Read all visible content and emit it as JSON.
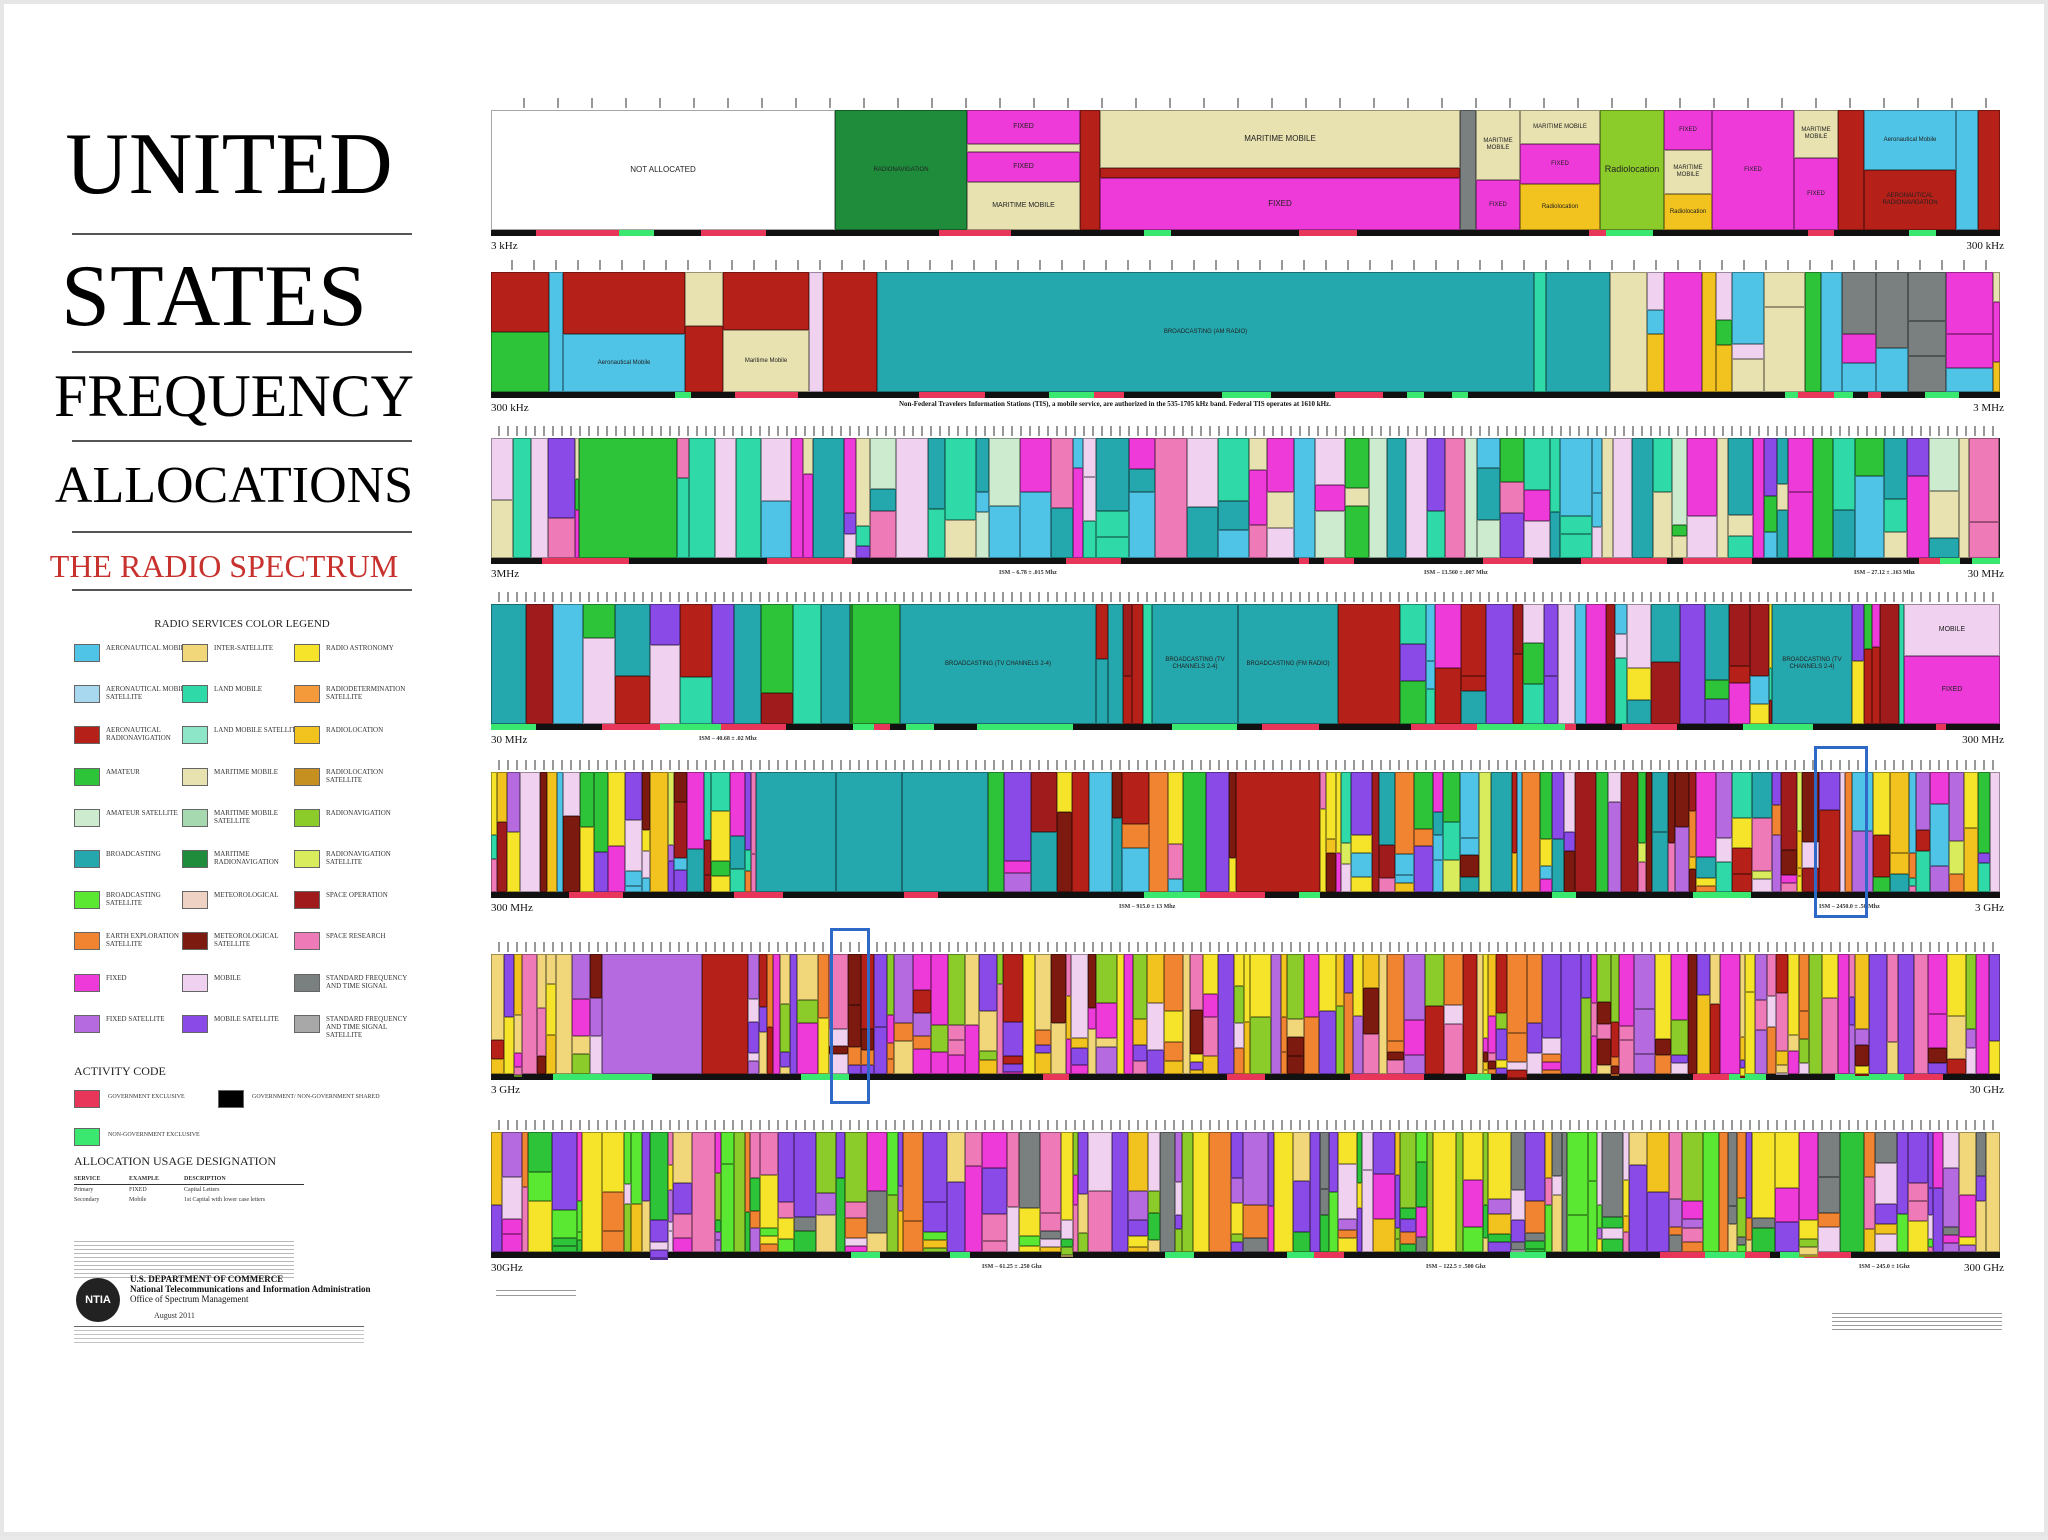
{
  "title": {
    "line1": "UNITED",
    "line2": "STATES",
    "line3": "FREQUENCY",
    "line4": "ALLOCATIONS",
    "subtitle": "THE RADIO SPECTRUM"
  },
  "legend": {
    "title": "RADIO SERVICES COLOR LEGEND",
    "items": [
      {
        "label": "AERONAUTICAL MOBILE",
        "color": "#4fc4e6"
      },
      {
        "label": "INTER-SATELLITE",
        "color": "#f1d77a"
      },
      {
        "label": "RADIO ASTRONOMY",
        "color": "#f5e42a"
      },
      {
        "label": "AERONAUTICAL MOBILE SATELLITE",
        "color": "#a8d8f0"
      },
      {
        "label": "LAND MOBILE",
        "color": "#2fd9a8"
      },
      {
        "label": "RADIODETERMINATION SATELLITE",
        "color": "#f59a3a"
      },
      {
        "label": "AERONAUTICAL RADIONAVIGATION",
        "color": "#b52018"
      },
      {
        "label": "LAND MOBILE SATELLITE",
        "color": "#8ee6c8"
      },
      {
        "label": "RADIOLOCATION",
        "color": "#f2c21f"
      },
      {
        "label": "AMATEUR",
        "color": "#2ec43a"
      },
      {
        "label": "MARITIME MOBILE",
        "color": "#e8e2b0"
      },
      {
        "label": "RADIOLOCATION SATELLITE",
        "color": "#c69020"
      },
      {
        "label": "AMATEUR SATELLITE",
        "color": "#cdeccf"
      },
      {
        "label": "MARITIME MOBILE SATELLITE",
        "color": "#a6d9b0"
      },
      {
        "label": "RADIONAVIGATION",
        "color": "#8ccc2a"
      },
      {
        "label": "BROADCASTING",
        "color": "#25a8ad"
      },
      {
        "label": "MARITIME RADIONAVIGATION",
        "color": "#1f8c3c"
      },
      {
        "label": "RADIONAVIGATION SATELLITE",
        "color": "#d8ec5c"
      },
      {
        "label": "BROADCASTING SATELLITE",
        "color": "#5ae832"
      },
      {
        "label": "METEOROLOGICAL",
        "color": "#f0d2c4"
      },
      {
        "label": "SPACE OPERATION",
        "color": "#a01c1c"
      },
      {
        "label": "EARTH EXPLORATION SATELLITE",
        "color": "#f08430"
      },
      {
        "label": "METEOROLOGICAL SATELLITE",
        "color": "#7c1a10"
      },
      {
        "label": "SPACE RESEARCH",
        "color": "#ee7ab8"
      },
      {
        "label": "FIXED",
        "color": "#ee3ad8"
      },
      {
        "label": "MOBILE",
        "color": "#f0d2f0"
      },
      {
        "label": "STANDARD FREQUENCY AND TIME SIGNAL",
        "color": "#7a8080"
      },
      {
        "label": "FIXED SATELLITE",
        "color": "#b66ae0"
      },
      {
        "label": "MOBILE SATELLITE",
        "color": "#8a4ae8"
      },
      {
        "label": "STANDARD FREQUENCY AND TIME SIGNAL SATELLITE",
        "color": "#a8a8a8"
      }
    ]
  },
  "activity": {
    "title": "ACTIVITY CODE",
    "items": [
      {
        "label": "GOVERNMENT EXCLUSIVE",
        "color": "#e8365a"
      },
      {
        "label": "GOVERNMENT/ NON-GOVERNMENT SHARED",
        "color": "#000000"
      },
      {
        "label": "NON-GOVERNMENT EXCLUSIVE",
        "color": "#3ae870"
      }
    ]
  },
  "usage": {
    "title": "ALLOCATION USAGE DESIGNATION",
    "headers": [
      "SERVICE",
      "EXAMPLE",
      "DESCRIPTION"
    ],
    "rows": [
      [
        "Primary",
        "FIXED",
        "Capital Letters"
      ],
      [
        "Secondary",
        "Mobile",
        "1st Capital with lower case letters"
      ]
    ]
  },
  "agency": {
    "logo": "NTIA",
    "line1": "U.S. DEPARTMENT OF COMMERCE",
    "line2": "National Telecommunications and Information Administration",
    "line3": "Office of Spectrum Management",
    "date": "August 2011"
  },
  "bands": [
    {
      "start": "3 kHz",
      "end": "300 kHz"
    },
    {
      "start": "300 kHz",
      "end": "3 MHz",
      "note": "Non-Federal Travelers Information Stations (TIS), a mobile service, are authorized in the 535-1705 kHz band. Federal TIS operates at 1610 kHz."
    },
    {
      "start": "3MHz",
      "end": "30 MHz"
    },
    {
      "start": "30 MHz",
      "end": "300 MHz"
    },
    {
      "start": "300 MHz",
      "end": "3 GHz"
    },
    {
      "start": "3 GHz",
      "end": "30 GHz"
    },
    {
      "start": "30GHz",
      "end": "300 GHz"
    }
  ],
  "scale_notes": {
    "b3": [
      "ISM – 6.78 ± .015 Mhz",
      "ISM – 13.560 ± .007 Mhz",
      "ISM – 27.12 ± .163 Mhz"
    ],
    "b4": [
      "ISM – 40.68 ± .02 Mhz"
    ],
    "b5": [
      "ISM – 915.0 ± 13 Mhz",
      "ISM – 2450.0 ± .50 Mhz"
    ],
    "b7": [
      "ISM – 61.25 ± .250 Ghz",
      "ISM – 122.5 ± .500 Ghz",
      "ISM – 245.0 ± 1Ghz"
    ]
  },
  "band1_labels": {
    "not_allocated": "NOT ALLOCATED",
    "radionavigation": "RADIONAVIGATION",
    "fixed": "FIXED",
    "maritime_mobile": "MARITIME MOBILE",
    "radiolocation": "Radiolocation",
    "aeronautical_mobile": "Aeronautical Mobile",
    "aeronautical_radionavigation": "AERONAUTICAL RADIONAVIGATION"
  },
  "band2_labels": {
    "broadcasting": "BROADCASTING (AM RADIO)",
    "aeronautical_mobile": "Aeronautical Mobile",
    "maritime_mobile": "Maritime Mobile"
  },
  "band4_labels": {
    "broadcasting_tv": "BROADCASTING (TV CHANNELS 2-4)",
    "broadcasting_fm": "BROADCASTING (FM RADIO)",
    "mobile": "MOBILE",
    "fixed": "FIXED"
  }
}
